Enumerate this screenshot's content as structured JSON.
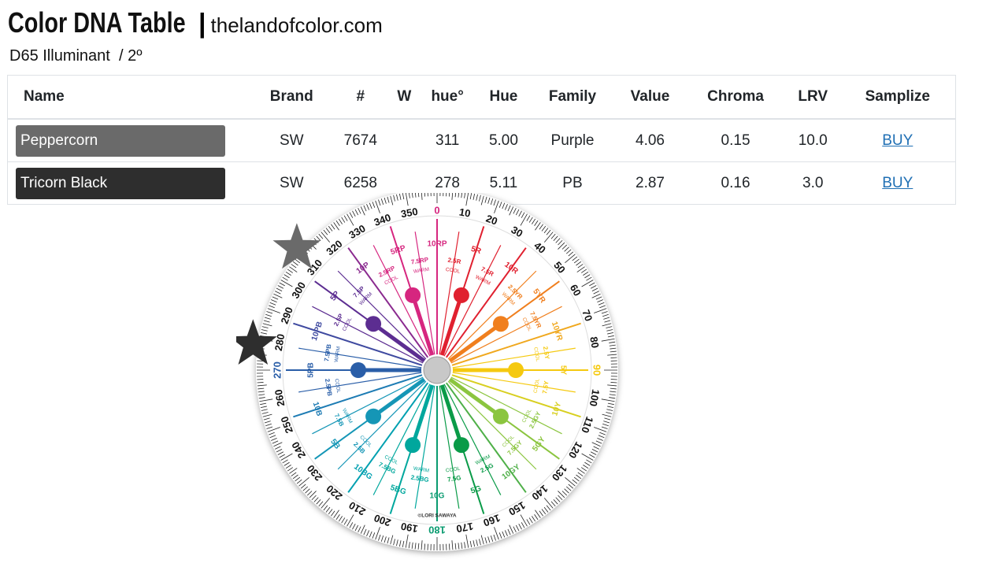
{
  "header": {
    "title": "Color DNA Table",
    "separator": "|",
    "site": "thelandofcolor.com",
    "subtitle": "D65 Illuminant  / 2º"
  },
  "table": {
    "columns": [
      "Name",
      "Brand",
      "#",
      "W",
      "hue°",
      "Hue",
      "Family",
      "Value",
      "Chroma",
      "LRV",
      "Samplize"
    ],
    "rows": [
      {
        "name": "Peppercorn",
        "swatch": "#6a6a6a",
        "brand": "SW",
        "number": "7674",
        "hue_deg": 311,
        "hue": "5.00",
        "family": "Purple",
        "value": "4.06",
        "chroma": "0.15",
        "lrv": "10.0",
        "samplize": "BUY"
      },
      {
        "name": "Tricorn Black",
        "swatch": "#2e2e2e",
        "brand": "SW",
        "number": "6258",
        "hue_deg": 278,
        "hue": "5.11",
        "family": "PB",
        "value": "2.87",
        "chroma": "0.16",
        "lrv": "3.0",
        "samplize": "BUY"
      }
    ]
  },
  "wheel": {
    "degrees": [
      0,
      10,
      20,
      30,
      40,
      50,
      60,
      70,
      80,
      90,
      100,
      110,
      120,
      130,
      140,
      150,
      160,
      170,
      180,
      190,
      200,
      210,
      220,
      230,
      240,
      250,
      260,
      270,
      280,
      290,
      300,
      310,
      320,
      330,
      340,
      350
    ],
    "hues": [
      {
        "label": "10RP",
        "color": "#d6267f"
      },
      {
        "label": "2.5R",
        "note": "COOL",
        "color": "#e0202f"
      },
      {
        "label": "5R",
        "color": "#e0202f"
      },
      {
        "label": "7.5R",
        "note": "WARM",
        "color": "#e0202f"
      },
      {
        "label": "10R",
        "color": "#e0202f"
      },
      {
        "label": "2.5YR",
        "note": "WARM",
        "color": "#f07f1e"
      },
      {
        "label": "5YR",
        "color": "#f07f1e"
      },
      {
        "label": "7.5YR",
        "note": "COOL",
        "color": "#f07f1e"
      },
      {
        "label": "10YR",
        "color": "#f0a81e"
      },
      {
        "label": "2.5Y",
        "note": "COOL",
        "color": "#f5c90f"
      },
      {
        "label": "5Y",
        "color": "#f5c90f"
      },
      {
        "label": "7.5Y",
        "note": "COOL",
        "color": "#f5c90f"
      },
      {
        "label": "10Y",
        "color": "#d8cf20"
      },
      {
        "label": "2.5GY",
        "note": "COOL",
        "color": "#8bc53f"
      },
      {
        "label": "5GY",
        "color": "#8bc53f"
      },
      {
        "label": "7.5GY",
        "note": "COOL",
        "color": "#8bc53f"
      },
      {
        "label": "10GY",
        "color": "#4fb048"
      },
      {
        "label": "2.5G",
        "note": "WARM",
        "color": "#0a9b48"
      },
      {
        "label": "5G",
        "color": "#0a9b48"
      },
      {
        "label": "7.5G",
        "note": "COOL",
        "color": "#0a9b48"
      },
      {
        "label": "10G",
        "color": "#0a9b70"
      },
      {
        "label": "2.5BG",
        "note": "WARM",
        "color": "#00a79d"
      },
      {
        "label": "5BG",
        "color": "#00a79d"
      },
      {
        "label": "7.5BG",
        "note": "COOL",
        "color": "#00a79d"
      },
      {
        "label": "10BG",
        "color": "#00a0b0"
      },
      {
        "label": "2.5B",
        "note": "COOL",
        "color": "#1596b6"
      },
      {
        "label": "5B",
        "color": "#1596b6"
      },
      {
        "label": "7.5B",
        "note": "WARM",
        "color": "#1596b6"
      },
      {
        "label": "10B",
        "color": "#1e7cb4"
      },
      {
        "label": "2.5PB",
        "note": "COOL",
        "color": "#2a5ea8"
      },
      {
        "label": "5PB",
        "color": "#2a5ea8"
      },
      {
        "label": "7.5PB",
        "note": "WARM",
        "color": "#2a5ea8"
      },
      {
        "label": "10PB",
        "color": "#3f4aa0"
      },
      {
        "label": "2.5P",
        "note": "COOL",
        "color": "#5c2d91"
      },
      {
        "label": "5P",
        "color": "#5c2d91"
      },
      {
        "label": "7.5P",
        "note": "WARM",
        "color": "#5c2d91"
      },
      {
        "label": "10P",
        "color": "#8a2a8f"
      },
      {
        "label": "2.5RP",
        "note": "COOL",
        "color": "#d6267f"
      },
      {
        "label": "5RP",
        "color": "#d6267f"
      },
      {
        "label": "7.5RP",
        "note": "WARM",
        "color": "#d6267f"
      }
    ],
    "credit": "©LORI SAWAYA"
  }
}
